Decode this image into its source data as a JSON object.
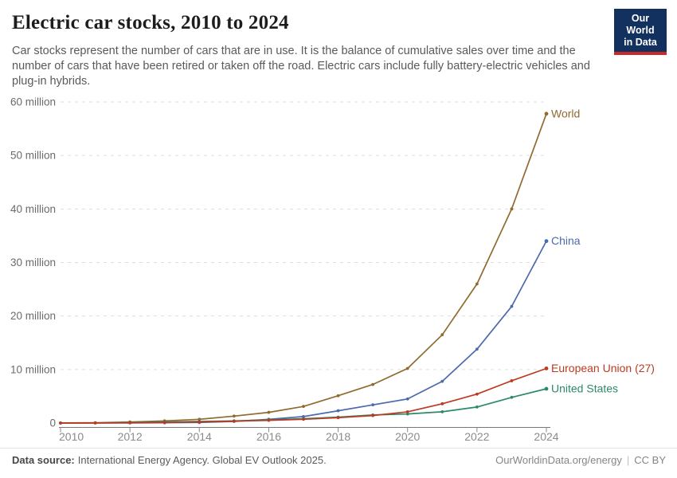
{
  "header": {
    "title": "Electric car stocks, 2010 to 2024",
    "subtitle": "Car stocks represent the number of cars that are in use. It is the balance of cumulative sales over time and the number of cars that have been retired or taken off the road. Electric cars include fully battery-electric vehicles and plug-in hybrids.",
    "logo": {
      "line1": "Our World",
      "line2": "in Data",
      "background_color": "#12315F",
      "accent_color": "#C62A29"
    }
  },
  "footer": {
    "source_label": "Data source:",
    "source_text": "International Energy Agency. Global EV Outlook 2025.",
    "right_text": "OurWorldinData.org/energy",
    "separator": "|",
    "license": "CC BY"
  },
  "chart_data": {
    "type": "line",
    "title": "Electric car stocks, 2010 to 2024",
    "xlabel": "",
    "ylabel": "",
    "x": [
      2010,
      2011,
      2012,
      2013,
      2014,
      2015,
      2016,
      2017,
      2018,
      2019,
      2020,
      2021,
      2022,
      2023,
      2024
    ],
    "series": [
      {
        "name": "World",
        "color": "#8F6B2F",
        "values": [
          0.02,
          0.06,
          0.2,
          0.4,
          0.7,
          1.3,
          2.0,
          3.1,
          5.1,
          7.2,
          10.2,
          16.5,
          26.0,
          40.0,
          57.8
        ]
      },
      {
        "name": "China",
        "color": "#4C6BAC",
        "values": [
          0.0,
          0.01,
          0.02,
          0.04,
          0.1,
          0.3,
          0.7,
          1.2,
          2.3,
          3.4,
          4.5,
          7.8,
          13.8,
          21.8,
          34.0
        ]
      },
      {
        "name": "United States",
        "color": "#2D8A66",
        "values": [
          0.0,
          0.02,
          0.07,
          0.2,
          0.3,
          0.4,
          0.6,
          0.8,
          1.1,
          1.5,
          1.7,
          2.1,
          3.0,
          4.8,
          6.4
        ]
      },
      {
        "name": "European Union (27)",
        "color": "#BC3A22",
        "values": [
          0.0,
          0.02,
          0.05,
          0.1,
          0.2,
          0.35,
          0.5,
          0.7,
          1.0,
          1.4,
          2.1,
          3.6,
          5.4,
          7.9,
          10.2
        ]
      }
    ],
    "ylim": [
      0,
      60
    ],
    "yticks": [
      0,
      10,
      20,
      30,
      40,
      50,
      60
    ],
    "ytick_suffix": " million",
    "ytick_zero_label": "0",
    "xticks": [
      2010,
      2012,
      2014,
      2016,
      2018,
      2020,
      2022,
      2024
    ],
    "grid": "horizontal dashed",
    "legend": "direct labels at right end of lines"
  }
}
